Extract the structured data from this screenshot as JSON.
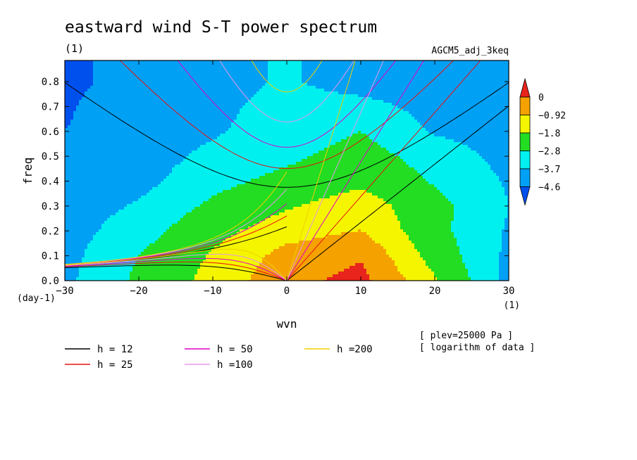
{
  "chart_data": {
    "type": "heatmap",
    "title": "eastward wind S-T power spectrum",
    "subtitle": "(1)",
    "experiment": "AGCM5_adj_3keq",
    "xlabel": "wvn",
    "ylabel": "freq",
    "x_unit": "(1)",
    "y_unit": "(day-1)",
    "xlim": [
      -30,
      30
    ],
    "ylim": [
      0,
      0.885
    ],
    "xticks": [
      -30,
      -20,
      -10,
      0,
      10,
      20,
      30
    ],
    "xtick_labels": [
      "−30",
      "−20",
      "−10",
      "0",
      "10",
      "20",
      "30"
    ],
    "yticks": [
      0.0,
      0.1,
      0.2,
      0.3,
      0.4,
      0.5,
      0.6,
      0.7,
      0.8
    ],
    "ytick_labels": [
      "0.0",
      "0.1",
      "0.2",
      "0.3",
      "0.4",
      "0.5",
      "0.6",
      "0.7",
      "0.8"
    ],
    "colorbar": {
      "labels": [
        "0",
        "−0.92",
        "−1.8",
        "−2.8",
        "−3.7",
        "−4.6"
      ],
      "levels": [
        0,
        -0.92,
        -1.8,
        -2.8,
        -3.7,
        -4.6
      ],
      "colors": [
        "#e8241c",
        "#f5a100",
        "#f5f500",
        "#22dd22",
        "#00f0f0",
        "#00a0f5",
        "#0050ee"
      ]
    },
    "contour_levels": [
      -4.6,
      -3.7,
      -2.8,
      -1.8,
      -0.92
    ],
    "field_grid": {
      "x": [
        -30,
        -20,
        -10,
        0,
        10,
        20,
        30
      ],
      "y": [
        0.0,
        0.1,
        0.2,
        0.3,
        0.4,
        0.5,
        0.6,
        0.7,
        0.8
      ],
      "z": [
        [
          -3.9,
          -2.6,
          -1.5,
          -0.3,
          0.3,
          -1.7,
          -4.0
        ],
        [
          -4.0,
          -2.8,
          -1.7,
          -0.6,
          -0.1,
          -2.2,
          -3.9
        ],
        [
          -4.1,
          -3.2,
          -2.1,
          -1.3,
          -0.9,
          -2.5,
          -3.8
        ],
        [
          -4.2,
          -3.6,
          -2.6,
          -1.9,
          -1.3,
          -2.5,
          -3.7
        ],
        [
          -4.4,
          -4.0,
          -3.1,
          -2.5,
          -2.0,
          -2.9,
          -3.8
        ],
        [
          -4.6,
          -4.1,
          -3.5,
          -3.0,
          -2.4,
          -3.2,
          -4.0
        ],
        [
          -4.6,
          -4.1,
          -3.8,
          -3.3,
          -2.8,
          -3.8,
          -4.1
        ],
        [
          -4.7,
          -4.1,
          -3.9,
          -3.4,
          -3.4,
          -4.0,
          -4.2
        ],
        [
          -4.8,
          -4.3,
          -4.0,
          -3.6,
          -4.1,
          -4.3,
          -4.4
        ]
      ]
    },
    "series": [
      {
        "name": "h = 12",
        "equivalent_depth_m": 12,
        "color": "#000000"
      },
      {
        "name": "h = 25",
        "equivalent_depth_m": 25,
        "color": "#e81010"
      },
      {
        "name": "h = 50",
        "equivalent_depth_m": 50,
        "color": "#e000c8"
      },
      {
        "name": "h =100",
        "equivalent_depth_m": 100,
        "color": "#e898e8"
      },
      {
        "name": "h =200",
        "equivalent_depth_m": 200,
        "color": "#f0d000"
      }
    ],
    "annotations": [
      "[ plev=25000 Pa ]",
      "[ logarithm of data ]"
    ]
  }
}
